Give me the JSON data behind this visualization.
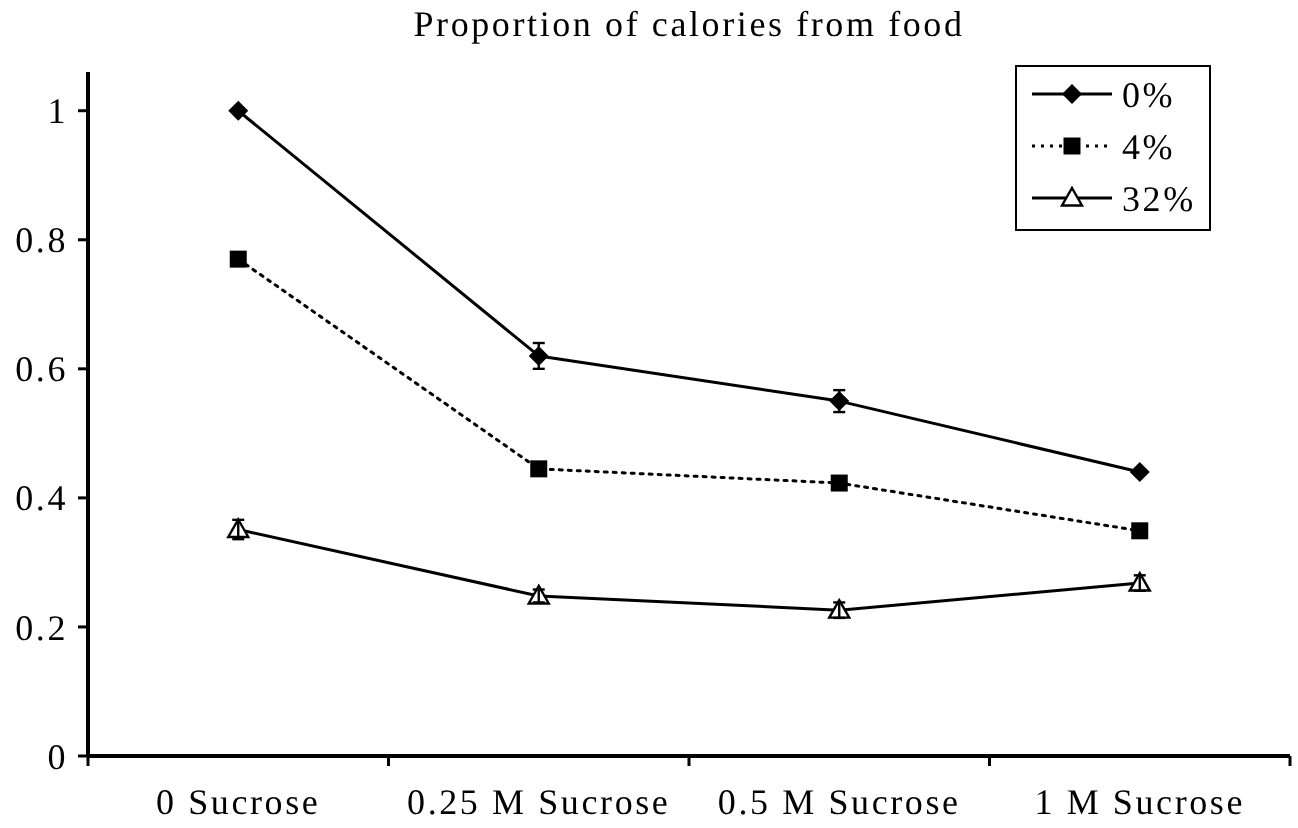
{
  "chart_data": {
    "type": "line",
    "title": "Proportion of calories from food",
    "categories": [
      "0 Sucrose",
      "0.25 M Sucrose",
      "0.5 M Sucrose",
      "1 M Sucrose"
    ],
    "series": [
      {
        "name": "0%",
        "color": "#000000",
        "values": [
          1.0,
          0.62,
          0.55,
          0.44
        ],
        "errors": [
          null,
          0.02,
          0.017,
          null
        ],
        "marker": "diamond",
        "line_style": "solid"
      },
      {
        "name": "4%",
        "color": "#000000",
        "values": [
          0.77,
          0.445,
          0.423,
          0.349
        ],
        "marker": "square",
        "line_style": "dotted"
      },
      {
        "name": "32%",
        "color": "#000000",
        "values": [
          0.351,
          0.248,
          0.226,
          0.268
        ],
        "errors": [
          0.015,
          0.01,
          0.012,
          0.012
        ],
        "marker": "triangle",
        "line_style": "solid"
      }
    ],
    "ylim": [
      0,
      1.06
    ],
    "yticks": [
      0,
      0.2,
      0.4,
      0.6,
      0.8,
      1
    ],
    "grid": false,
    "legend": "top right"
  }
}
